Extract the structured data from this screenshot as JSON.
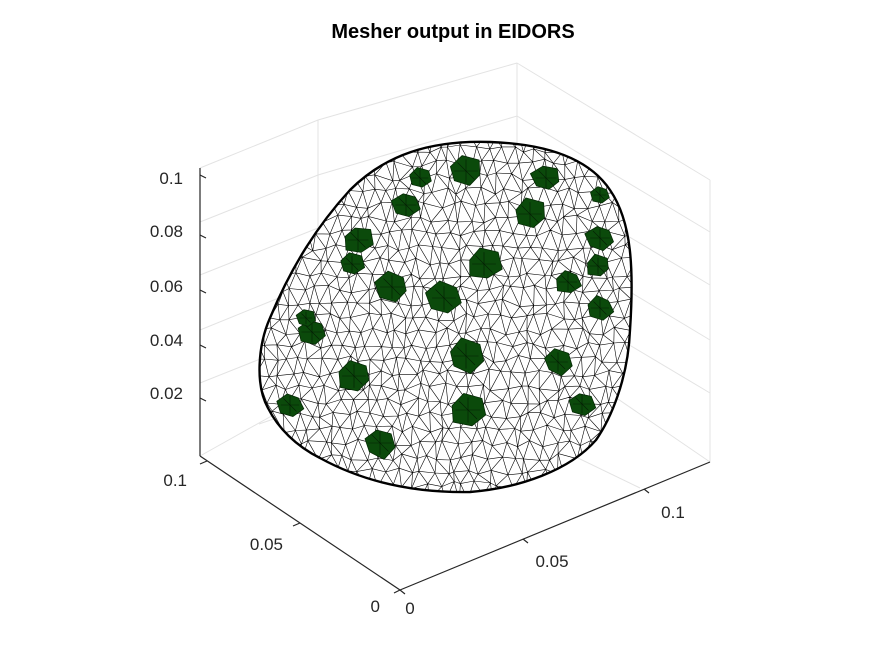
{
  "figure": {
    "title": "Mesher output in EIDORS",
    "plot_type": "3D mesh (wireframe with electrode patches)",
    "colors": {
      "background": "#ffffff",
      "mesh_edges": "#000000",
      "electrodes": "#0b4a0b",
      "grid": "#e6e6e6",
      "axes": "#262626"
    },
    "axes": {
      "z_ticks": [
        "0.1",
        "0.08",
        "0.06",
        "0.04",
        "0.02"
      ],
      "y_ticks": [
        "0.1",
        "0.05",
        "0"
      ],
      "x_ticks": [
        "0",
        "0.05",
        "0.1"
      ]
    },
    "electrode_count": 24
  }
}
